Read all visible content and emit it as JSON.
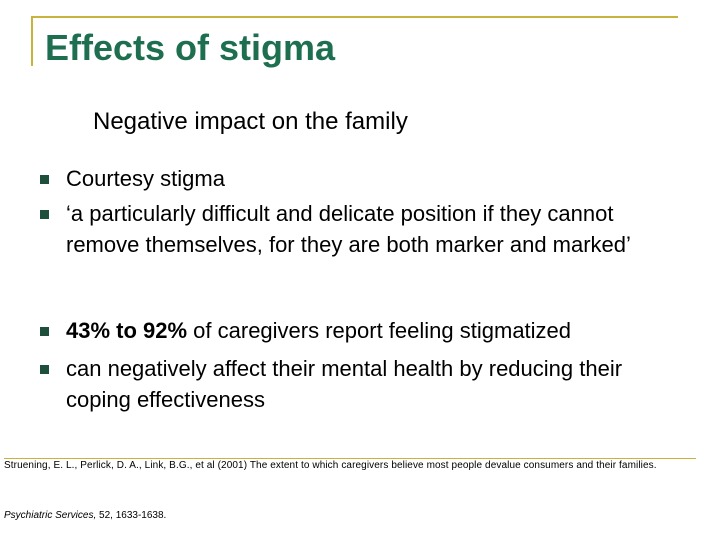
{
  "title": "Effects of stigma",
  "subtitle": "Negative impact on the family",
  "bullets": [
    {
      "text": "Courtesy stigma"
    },
    {
      "text": "‘a particularly difficult and delicate position if they cannot remove themselves, for they are both marker and marked’"
    },
    {
      "bold_lead": "43% to 92%",
      "text": " of caregivers report feeling stigmatized"
    },
    {
      "text": "can negatively affect their mental health by reducing their coping effectiveness"
    }
  ],
  "reference": {
    "line1": "Struening, E. L., Perlick, D. A., Link, B.G., et al (2001) The extent to which caregivers believe most people devalue consumers and their families.",
    "journal": "Psychiatric Services,",
    "volume_pages": " 52, 1633-1638."
  },
  "colors": {
    "title": "#1e6e50",
    "frame": "#c8b43c",
    "bullet_marker": "#1e4f3c"
  }
}
